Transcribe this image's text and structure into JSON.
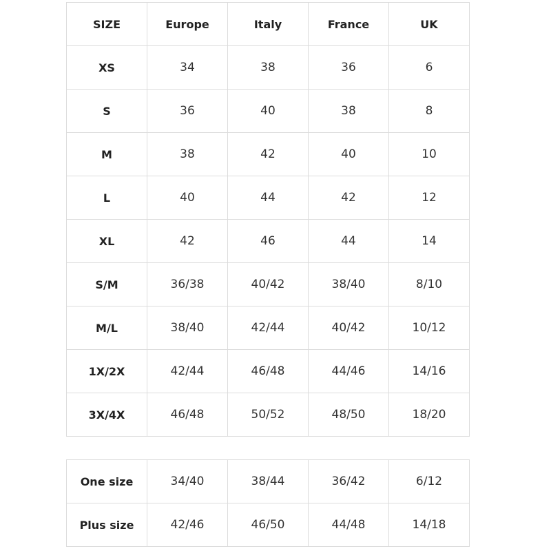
{
  "table": {
    "header": [
      "SIZE",
      "Europe",
      "Italy",
      "France",
      "UK"
    ],
    "rows": [
      [
        "XS",
        "34",
        "38",
        "36",
        "6"
      ],
      [
        "S",
        "36",
        "40",
        "38",
        "8"
      ],
      [
        "M",
        "38",
        "42",
        "40",
        "10"
      ],
      [
        "L",
        "40",
        "44",
        "42",
        "12"
      ],
      [
        "XL",
        "42",
        "46",
        "44",
        "14"
      ],
      [
        "S/M",
        "36/38",
        "40/42",
        "38/40",
        "8/10"
      ],
      [
        "M/L",
        "38/40",
        "42/44",
        "40/42",
        "10/12"
      ],
      [
        "1X/2X",
        "42/44",
        "46/48",
        "44/46",
        "14/16"
      ],
      [
        "3X/4X",
        "46/48",
        "50/52",
        "48/50",
        "18/20"
      ]
    ]
  },
  "table2": {
    "rows": [
      [
        "One size",
        "34/40",
        "38/44",
        "36/42",
        "6/12"
      ],
      [
        "Plus size",
        "42/46",
        "46/50",
        "44/48",
        "14/18"
      ]
    ]
  }
}
